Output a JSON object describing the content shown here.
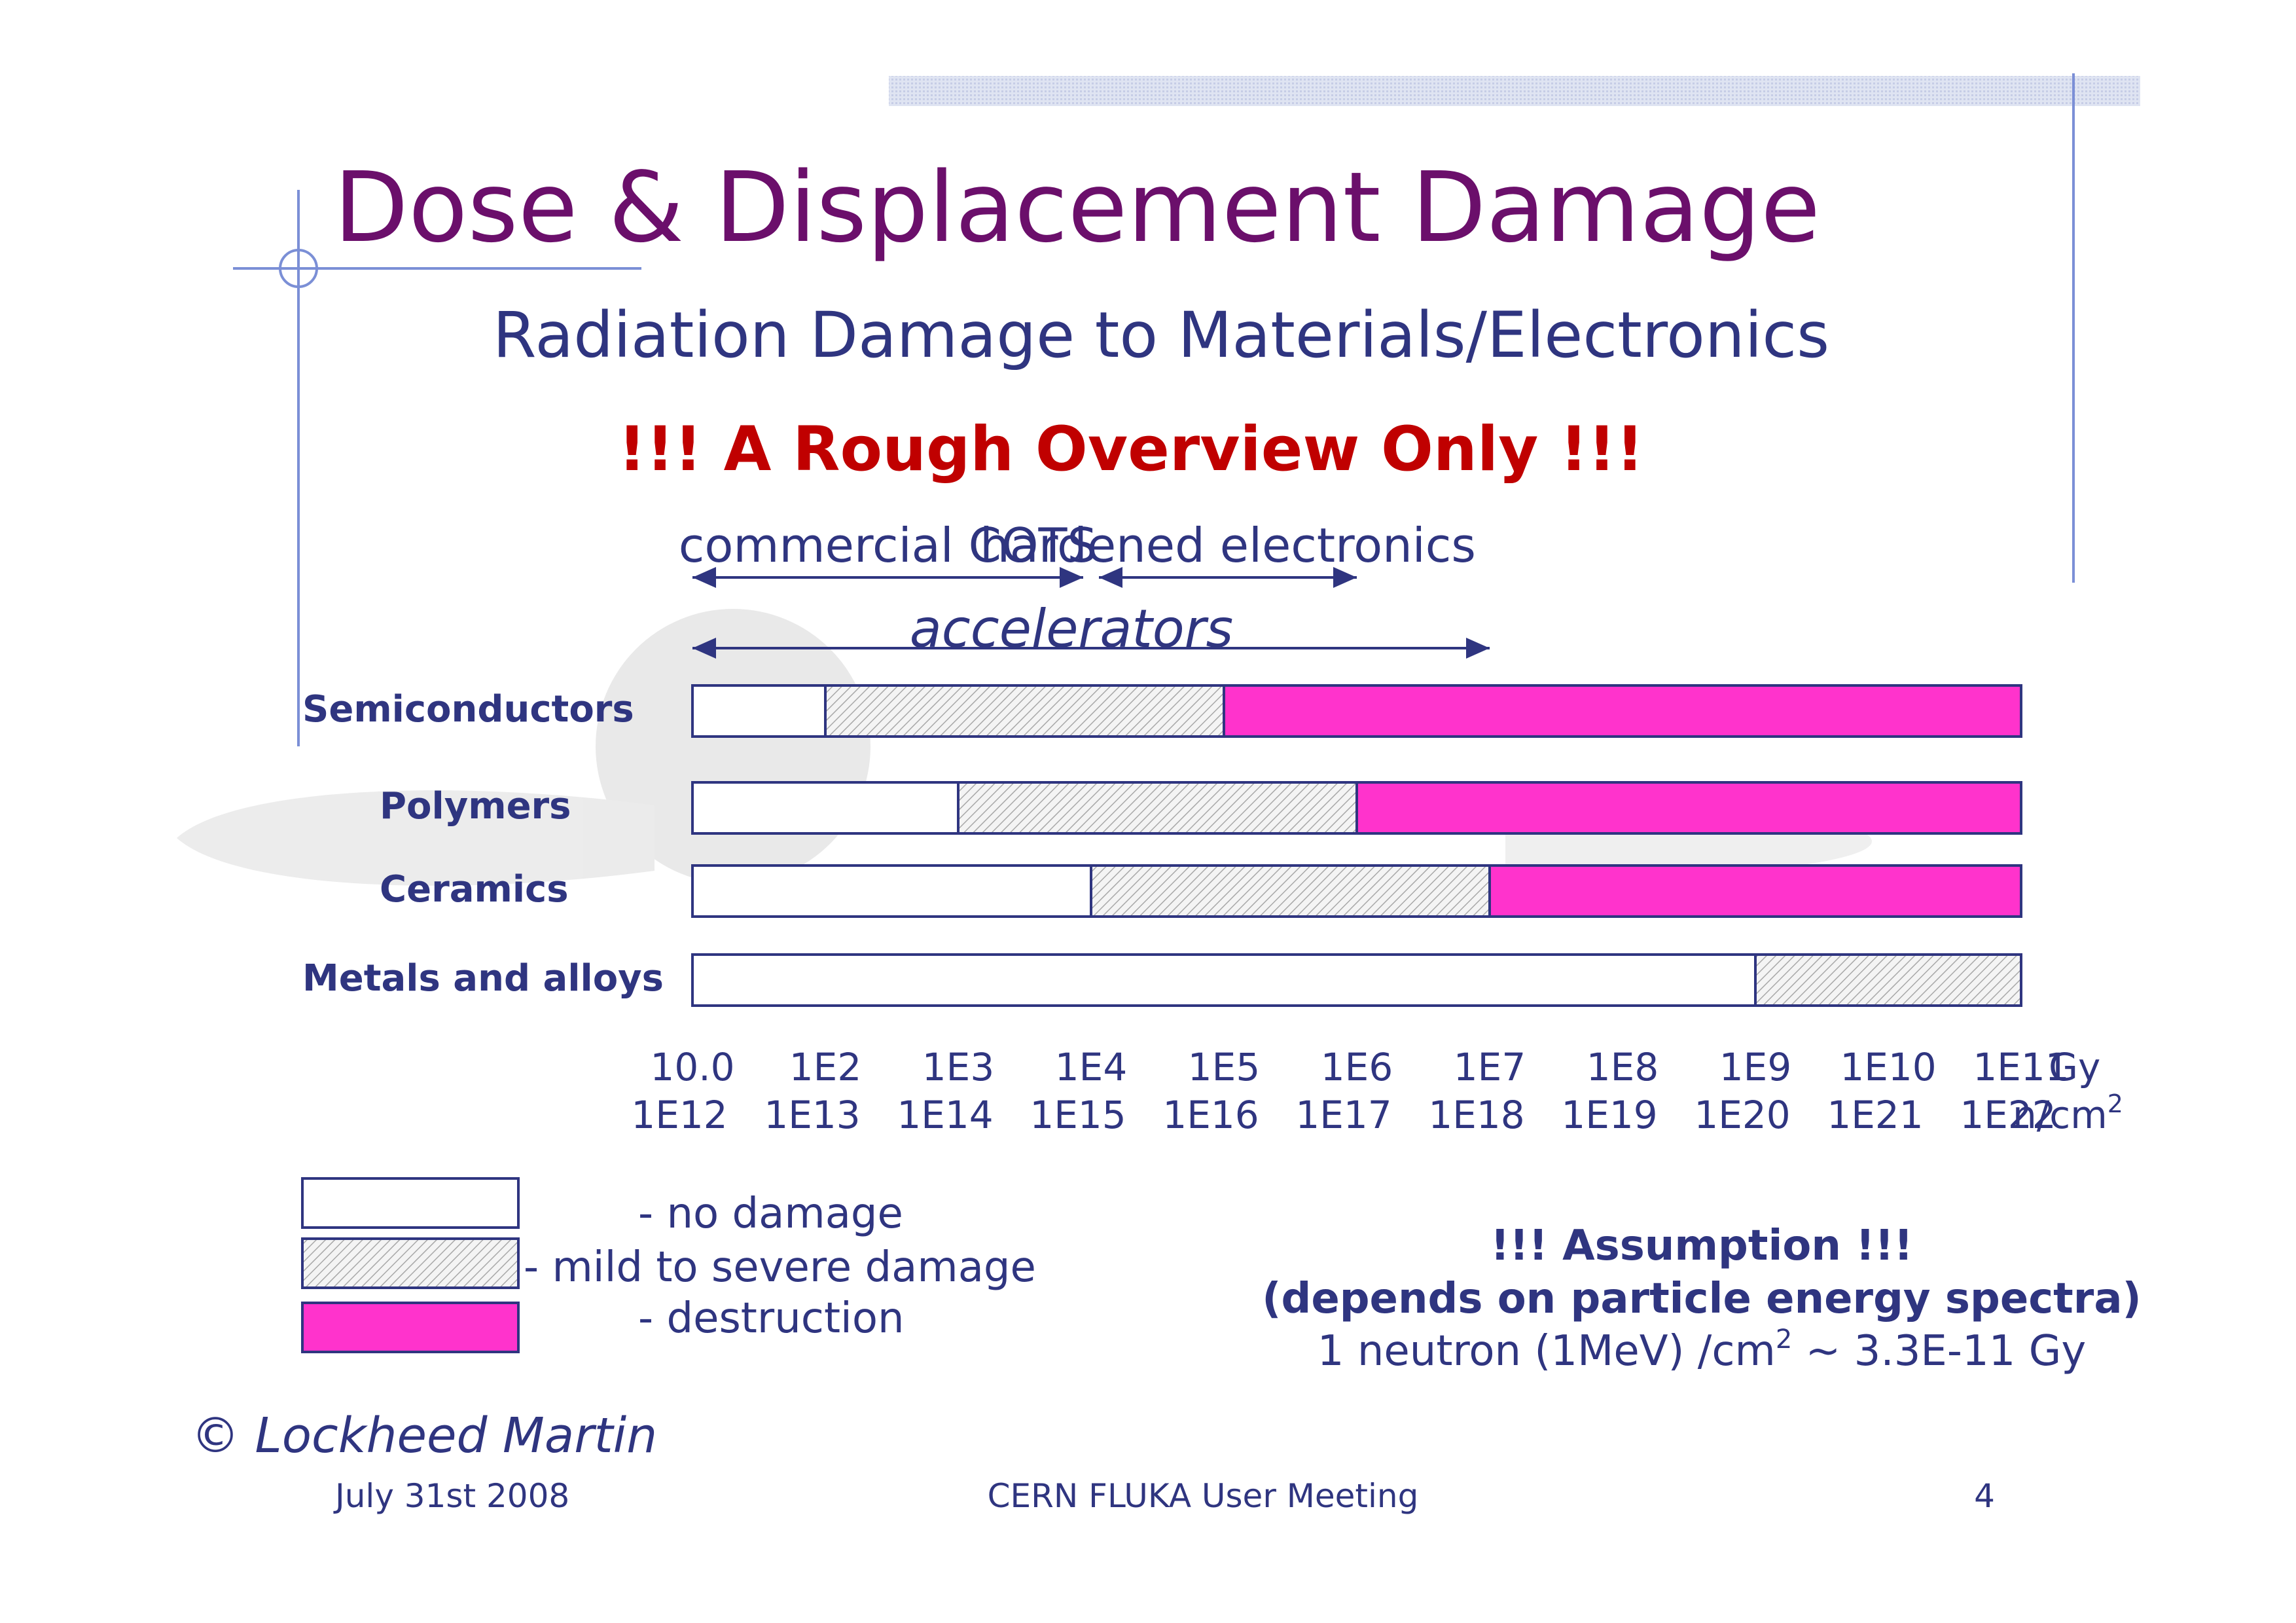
{
  "slide": {
    "title": "Dose & Displacement Damage",
    "subtitle": "Radiation Damage to Materials/Electronics",
    "warning": "!!! A Rough Overview Only !!!",
    "copyright": "© Lockheed Martin",
    "footer": {
      "date": "July 31st 2008",
      "event": "CERN FLUKA User Meeting",
      "page": "4"
    },
    "legend": [
      {
        "key": "none",
        "label": "- no damage"
      },
      {
        "key": "mild",
        "label": "- mild to severe damage"
      },
      {
        "key": "destruction",
        "label": "- destruction"
      }
    ],
    "assumption": {
      "line1": "!!! Assumption !!!",
      "line2": "(depends on particle energy spectra)",
      "line3_prefix": "1 neutron (1MeV) /cm",
      "line3_sup": "2",
      "line3_suffix": " ~ 3.3E-11 Gy"
    },
    "colors": {
      "title": "#6b0f6b",
      "navy": "#2f3580",
      "warning": "#c00000",
      "destruction": "#ff33cc",
      "frame_line": "#7b8fd6"
    }
  },
  "chart_data": {
    "type": "bar",
    "subtype": "horizontal-ranges",
    "x_scale": "log",
    "xlim_gy": [
      10,
      100000000000.0
    ],
    "categories": [
      "Semiconductors",
      "Polymers",
      "Ceramics",
      "Metals and alloys"
    ],
    "series": [
      {
        "name": "no damage",
        "key": "none",
        "values": [
          [
            10,
            100
          ],
          [
            10,
            1000
          ],
          [
            10,
            10000
          ],
          [
            10,
            1000000000.0
          ]
        ]
      },
      {
        "name": "mild to severe damage",
        "key": "mild",
        "values": [
          [
            100,
            100000
          ],
          [
            1000,
            1000000
          ],
          [
            10000,
            10000000
          ],
          [
            1000000000.0,
            100000000000.0
          ]
        ]
      },
      {
        "name": "destruction",
        "key": "destruction",
        "values": [
          [
            100000,
            100000000000.0
          ],
          [
            1000000,
            100000000000.0
          ],
          [
            10000000,
            100000000000.0
          ],
          null
        ]
      }
    ],
    "gy_ticks": [
      {
        "label": "10.0",
        "value": 10
      },
      {
        "label": "1E2",
        "value": 100
      },
      {
        "label": "1E3",
        "value": 1000
      },
      {
        "label": "1E4",
        "value": 10000
      },
      {
        "label": "1E5",
        "value": 100000
      },
      {
        "label": "1E6",
        "value": 1000000
      },
      {
        "label": "1E7",
        "value": 10000000
      },
      {
        "label": "1E8",
        "value": 100000000
      },
      {
        "label": "1E9",
        "value": 1000000000
      },
      {
        "label": "1E10",
        "value": 10000000000
      },
      {
        "label": "1E11",
        "value": 100000000000
      }
    ],
    "gy_unit": "Gy",
    "fluence_ticks": [
      "1E12",
      "1E13",
      "1E14",
      "1E15",
      "1E16",
      "1E17",
      "1E18",
      "1E19",
      "1E20",
      "1E21",
      "1E22"
    ],
    "fluence_unit": "n/cm",
    "fluence_unit_sup": "2",
    "ranges": [
      {
        "label": "commercial COTS",
        "from": 10,
        "to": 10000
      },
      {
        "label": "hardened electronics",
        "from": 10000,
        "to": 1000000
      },
      {
        "label": "accelerators",
        "from": 10,
        "to": 10000000
      }
    ]
  }
}
